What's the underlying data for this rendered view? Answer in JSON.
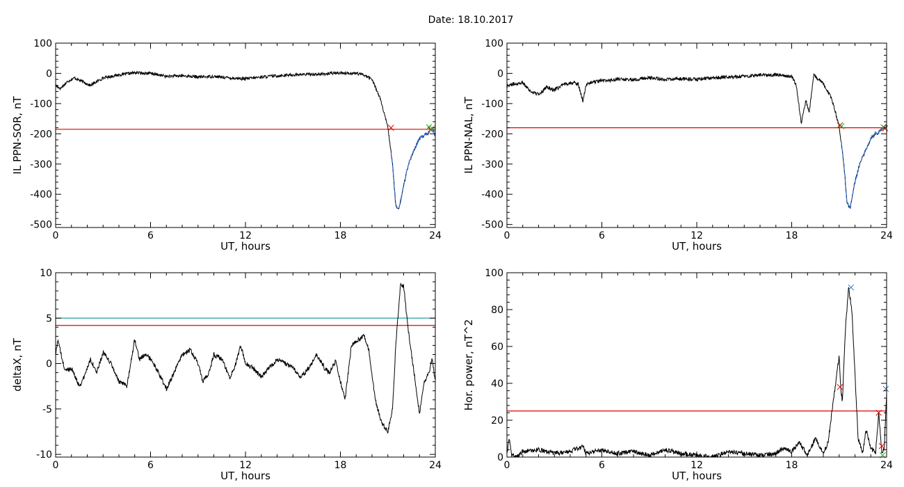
{
  "figure_title": "Date:  18.10.2017",
  "colors": {
    "axis": "#000000",
    "series": "#000000",
    "threshold_red": "#e00000",
    "threshold_teal": "#2a9d9d",
    "highlight_blue": "#2f6fd6",
    "marker_green": "#20b020",
    "marker_red": "#e00000",
    "marker_blue": "#2f6fd6"
  },
  "chart_data": [
    {
      "id": "ppn_sor",
      "type": "line",
      "xlabel": "UT, hours",
      "ylabel": "IL PPN-SOR, nT",
      "xlim": [
        0,
        24
      ],
      "ylim": [
        -510,
        100
      ],
      "xticks": [
        0,
        6,
        12,
        18,
        24
      ],
      "yticks": [
        100,
        0,
        -100,
        -200,
        -300,
        -400,
        -500
      ],
      "noise": 5,
      "x": [
        0,
        0.3,
        0.8,
        1.2,
        1.8,
        2.2,
        3,
        4,
        5,
        6,
        7,
        8,
        9,
        10,
        11,
        12,
        13,
        14,
        15,
        16,
        17,
        18,
        19,
        19.5,
        20,
        20.5,
        21,
        21.3,
        21.5,
        21.7,
        22,
        22.3,
        22.7,
        23,
        23.3,
        23.5,
        23.7,
        23.85,
        24
      ],
      "values": [
        -40,
        -50,
        -25,
        -15,
        -30,
        -40,
        -15,
        -5,
        2,
        0,
        -10,
        -8,
        -12,
        -10,
        -15,
        -18,
        -12,
        -8,
        -5,
        -3,
        -2,
        2,
        0,
        -5,
        -20,
        -80,
        -180,
        -300,
        -440,
        -450,
        -370,
        -300,
        -250,
        -215,
        -205,
        -200,
        -190,
        -185,
        -210
      ],
      "highlight": {
        "from": 21.2,
        "to": 24
      },
      "threshold_red": -185,
      "markers": [
        {
          "x": 21.2,
          "y": -180,
          "symbol": "x",
          "color": "red"
        },
        {
          "x": 23.6,
          "y": -178,
          "symbol": "x",
          "color": "green"
        },
        {
          "x": 23.7,
          "y": -186,
          "symbol": "x",
          "color": "red"
        },
        {
          "x": 23.8,
          "y": -182,
          "symbol": "x",
          "color": "green"
        }
      ]
    },
    {
      "id": "ppn_nal",
      "type": "line",
      "xlabel": "UT, hours",
      "ylabel": "IL PPN-NAL, nT",
      "xlim": [
        0,
        24
      ],
      "ylim": [
        -510,
        100
      ],
      "xticks": [
        0,
        6,
        12,
        18,
        24
      ],
      "yticks": [
        100,
        0,
        -100,
        -200,
        -300,
        -400,
        -500
      ],
      "noise": 6,
      "x": [
        0,
        0.5,
        1,
        1.5,
        2,
        2.5,
        3,
        3.5,
        4,
        4.5,
        4.8,
        5,
        5.3,
        6,
        7,
        8,
        9,
        10,
        11,
        12,
        13,
        14,
        15,
        16,
        17,
        18,
        18.3,
        18.6,
        18.9,
        19.1,
        19.4,
        19.7,
        20,
        20.5,
        21,
        21.3,
        21.5,
        21.7,
        22,
        22.3,
        22.7,
        23,
        23.3,
        23.5,
        23.8,
        24
      ],
      "values": [
        -40,
        -35,
        -30,
        -60,
        -70,
        -45,
        -55,
        -40,
        -30,
        -35,
        -90,
        -40,
        -30,
        -25,
        -20,
        -20,
        -15,
        -20,
        -18,
        -20,
        -15,
        -12,
        -10,
        -5,
        -5,
        -10,
        -40,
        -165,
        -90,
        -130,
        -5,
        -20,
        -35,
        -80,
        -175,
        -300,
        -430,
        -445,
        -360,
        -300,
        -250,
        -215,
        -200,
        -195,
        -180,
        -170
      ],
      "highlight": {
        "from": 21.1,
        "to": 24
      },
      "threshold_red": -180,
      "markers": [
        {
          "x": 21.05,
          "y": -172,
          "symbol": "x",
          "color": "red"
        },
        {
          "x": 21.15,
          "y": -175,
          "symbol": "x",
          "color": "green"
        },
        {
          "x": 23.8,
          "y": -178,
          "symbol": "x",
          "color": "green"
        },
        {
          "x": 23.9,
          "y": -182,
          "symbol": "x",
          "color": "red"
        }
      ]
    },
    {
      "id": "deltax",
      "type": "line",
      "xlabel": "UT, hours",
      "ylabel": "deltaX, nT",
      "xlim": [
        0,
        24
      ],
      "ylim": [
        -10.3,
        10
      ],
      "xticks": [
        0,
        6,
        12,
        18,
        24
      ],
      "yticks": [
        10,
        5,
        0,
        -5,
        -10
      ],
      "noise": 0.25,
      "x": [
        0,
        0.15,
        0.4,
        0.6,
        1,
        1.5,
        1.8,
        2.2,
        2.6,
        3,
        3.5,
        4,
        4.5,
        5,
        5.3,
        5.7,
        6,
        6.5,
        7,
        7.5,
        8,
        8.5,
        9,
        9.3,
        9.7,
        10,
        10.5,
        11,
        11.3,
        11.7,
        12,
        12.5,
        13,
        13.5,
        14,
        14.5,
        15,
        15.5,
        16,
        16.5,
        17,
        17.3,
        17.7,
        18,
        18.3,
        18.7,
        19,
        19.5,
        19.8,
        20.2,
        20.6,
        21,
        21.3,
        21.5,
        21.8,
        22,
        22.3,
        22.7,
        23,
        23.3,
        23.6,
        23.8,
        24
      ],
      "values": [
        1,
        2.7,
        0.5,
        -0.8,
        -0.5,
        -2.5,
        -1.5,
        0.5,
        -1,
        1.2,
        0,
        -2,
        -2.5,
        2.7,
        0.5,
        1,
        0.5,
        -1,
        -2.8,
        -1,
        1,
        1.5,
        0,
        -2,
        -1,
        1,
        0.5,
        -1.5,
        -0.5,
        2,
        0,
        -0.5,
        -1.5,
        -0.5,
        0.5,
        0,
        -0.5,
        -1.5,
        -0.5,
        1,
        -0.5,
        -1,
        0.3,
        -2,
        -3.8,
        2,
        2.5,
        3,
        1.5,
        -4,
        -6.5,
        -7.5,
        -5,
        2,
        8.8,
        8.5,
        3.5,
        -1.5,
        -5.5,
        -2,
        -1,
        0.5,
        -2
      ],
      "threshold_teal": 5,
      "threshold_red": 4.2
    },
    {
      "id": "hor_power",
      "type": "line",
      "xlabel": "UT, hours",
      "ylabel": "Hor. power, nT^2",
      "xlim": [
        0,
        24
      ],
      "ylim": [
        0,
        100
      ],
      "xticks": [
        0,
        6,
        12,
        18,
        24
      ],
      "yticks": [
        100,
        80,
        60,
        40,
        20,
        0
      ],
      "noise": 1.2,
      "clamp_min": 0,
      "x": [
        0,
        0.15,
        0.3,
        0.6,
        1,
        2,
        3,
        4,
        4.8,
        5,
        6,
        7,
        8,
        9,
        10,
        11,
        12,
        13,
        14,
        15,
        16,
        17,
        17.5,
        18,
        18.5,
        19,
        19.5,
        20,
        20.3,
        20.7,
        21,
        21.1,
        21.2,
        21.4,
        21.6,
        21.8,
        22,
        22.2,
        22.5,
        22.7,
        23,
        23.3,
        23.5,
        23.7,
        23.85,
        24
      ],
      "values": [
        2,
        10,
        1,
        0,
        3,
        4,
        2,
        3,
        6,
        2,
        4,
        2,
        3,
        1,
        4,
        2,
        1,
        0,
        3,
        2,
        1,
        2,
        5,
        3,
        8,
        1,
        10,
        2,
        8,
        35,
        55,
        38,
        30,
        70,
        92,
        80,
        45,
        10,
        2,
        15,
        5,
        2,
        24,
        2,
        5,
        35
      ],
      "threshold_red": 25,
      "markers": [
        {
          "x": 21.05,
          "y": 38,
          "symbol": "x",
          "color": "red"
        },
        {
          "x": 21.75,
          "y": 92,
          "symbol": "x",
          "color": "blue"
        },
        {
          "x": 23.5,
          "y": 24,
          "symbol": "x",
          "color": "red"
        },
        {
          "x": 23.7,
          "y": 6,
          "symbol": "x",
          "color": "red"
        },
        {
          "x": 23.75,
          "y": 1,
          "symbol": "x",
          "color": "green"
        },
        {
          "x": 23.95,
          "y": 37,
          "symbol": "x",
          "color": "blue"
        }
      ]
    }
  ]
}
